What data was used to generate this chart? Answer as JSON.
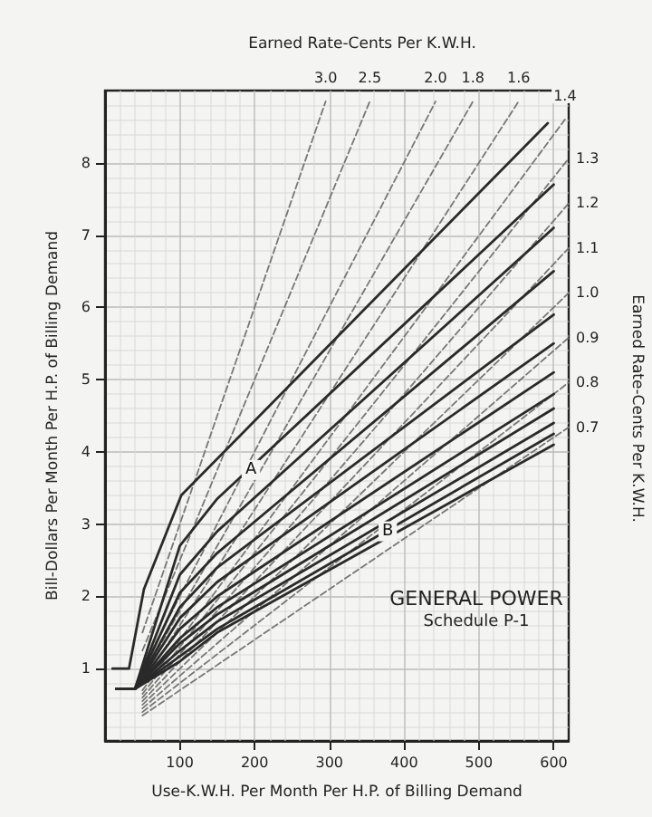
{
  "chart_data": {
    "type": "line",
    "title": "GENERAL POWER",
    "subtitle": "Schedule P-1",
    "xlabel": "Use-K.W.H. Per Month Per H.P. of Billing Demand",
    "ylabel": "Bill-Dollars Per Month Per H.P. of Billing Demand",
    "y2label": "Earned Rate-Cents Per K.W.H.",
    "annotations": [
      "Earned Rate-Cents Per K.W.H.",
      {
        "text": "A",
        "x": 195,
        "y": 3.75
      },
      {
        "text": "B",
        "x": 378,
        "y": 2.9
      }
    ],
    "xlim": [
      0,
      620
    ],
    "xticks": [
      100,
      200,
      300,
      400,
      500,
      600
    ],
    "ylim": [
      0,
      9
    ],
    "yticks": [
      1,
      2,
      3,
      4,
      5,
      6,
      7,
      8
    ],
    "grid": true,
    "legend": false,
    "marker": "none",
    "line_style": "solid",
    "series": [
      {
        "color": "#2a2a2a",
        "x": [
          10,
          32,
          52,
          102,
          592
        ],
        "values": [
          1,
          1,
          2.1,
          3.4,
          8.55
        ]
      },
      {
        "color": "#2a2a2a",
        "x": [
          15,
          40,
          100,
          150,
          600
        ],
        "values": [
          0.72,
          0.72,
          2.7,
          3.35,
          7.7
        ]
      },
      {
        "color": "#2a2a2a",
        "x": [
          15,
          40,
          100,
          150,
          600
        ],
        "values": [
          0.72,
          0.72,
          2.3,
          2.9,
          7.1
        ]
      },
      {
        "color": "#2a2a2a",
        "x": [
          15,
          40,
          100,
          150,
          600
        ],
        "values": [
          0.72,
          0.72,
          2.05,
          2.6,
          6.5
        ]
      },
      {
        "color": "#2a2a2a",
        "x": [
          15,
          40,
          100,
          150,
          600
        ],
        "values": [
          0.72,
          0.72,
          1.85,
          2.4,
          5.9
        ]
      },
      {
        "color": "#2a2a2a",
        "x": [
          15,
          40,
          100,
          150,
          600
        ],
        "values": [
          0.72,
          0.72,
          1.7,
          2.2,
          5.5
        ]
      },
      {
        "color": "#2a2a2a",
        "x": [
          15,
          40,
          100,
          150,
          600
        ],
        "values": [
          0.72,
          0.72,
          1.55,
          2.0,
          5.1
        ]
      },
      {
        "color": "#2a2a2a",
        "x": [
          15,
          40,
          100,
          150,
          600
        ],
        "values": [
          0.72,
          0.72,
          1.42,
          1.85,
          4.8
        ]
      },
      {
        "color": "#2a2a2a",
        "x": [
          15,
          40,
          100,
          150,
          600
        ],
        "values": [
          0.72,
          0.72,
          1.35,
          1.75,
          4.6
        ]
      },
      {
        "color": "#2a2a2a",
        "x": [
          15,
          40,
          100,
          150,
          600
        ],
        "values": [
          0.72,
          0.72,
          1.25,
          1.65,
          4.4
        ]
      },
      {
        "color": "#2a2a2a",
        "x": [
          15,
          40,
          100,
          150,
          600
        ],
        "values": [
          0.72,
          0.72,
          1.17,
          1.55,
          4.25
        ]
      },
      {
        "color": "#2a2a2a",
        "x": [
          15,
          40,
          100,
          150,
          600
        ],
        "values": [
          0.72,
          0.72,
          1.1,
          1.5,
          4.1
        ]
      },
      {
        "name": "3.0",
        "color": "#777777",
        "line_style": "dashed",
        "x": [
          50,
          295
        ],
        "values": [
          1.5,
          8.85
        ]
      },
      {
        "name": "2.5",
        "color": "#777777",
        "line_style": "dashed",
        "x": [
          50,
          354
        ],
        "values": [
          1.25,
          8.85
        ]
      },
      {
        "name": "2.0",
        "color": "#777777",
        "line_style": "dashed",
        "x": [
          50,
          442
        ],
        "values": [
          1.0,
          8.85
        ]
      },
      {
        "name": "1.8",
        "color": "#777777",
        "line_style": "dashed",
        "x": [
          50,
          492
        ],
        "values": [
          0.9,
          8.85
        ]
      },
      {
        "name": "1.6",
        "color": "#777777",
        "line_style": "dashed",
        "x": [
          50,
          553
        ],
        "values": [
          0.8,
          8.85
        ]
      },
      {
        "name": "1.4",
        "color": "#777777",
        "line_style": "dashed",
        "x": [
          50,
          615
        ],
        "values": [
          0.7,
          8.6
        ]
      },
      {
        "name": "1.3",
        "color": "#777777",
        "line_style": "dashed",
        "x": [
          50,
          620
        ],
        "values": [
          0.65,
          8.06
        ]
      },
      {
        "name": "1.2",
        "color": "#777777",
        "line_style": "dashed",
        "x": [
          50,
          620
        ],
        "values": [
          0.6,
          7.44
        ]
      },
      {
        "name": "1.1",
        "color": "#777777",
        "line_style": "dashed",
        "x": [
          50,
          620
        ],
        "values": [
          0.55,
          6.82
        ]
      },
      {
        "name": "1.0",
        "color": "#777777",
        "line_style": "dashed",
        "x": [
          50,
          620
        ],
        "values": [
          0.5,
          6.2
        ]
      },
      {
        "name": "0.9",
        "color": "#777777",
        "line_style": "dashed",
        "x": [
          50,
          620
        ],
        "values": [
          0.45,
          5.58
        ]
      },
      {
        "name": "0.8",
        "color": "#777777",
        "line_style": "dashed",
        "x": [
          50,
          620
        ],
        "values": [
          0.4,
          4.96
        ]
      },
      {
        "name": "0.7",
        "color": "#777777",
        "line_style": "dashed",
        "x": [
          50,
          620
        ],
        "values": [
          0.35,
          4.34
        ]
      }
    ]
  }
}
